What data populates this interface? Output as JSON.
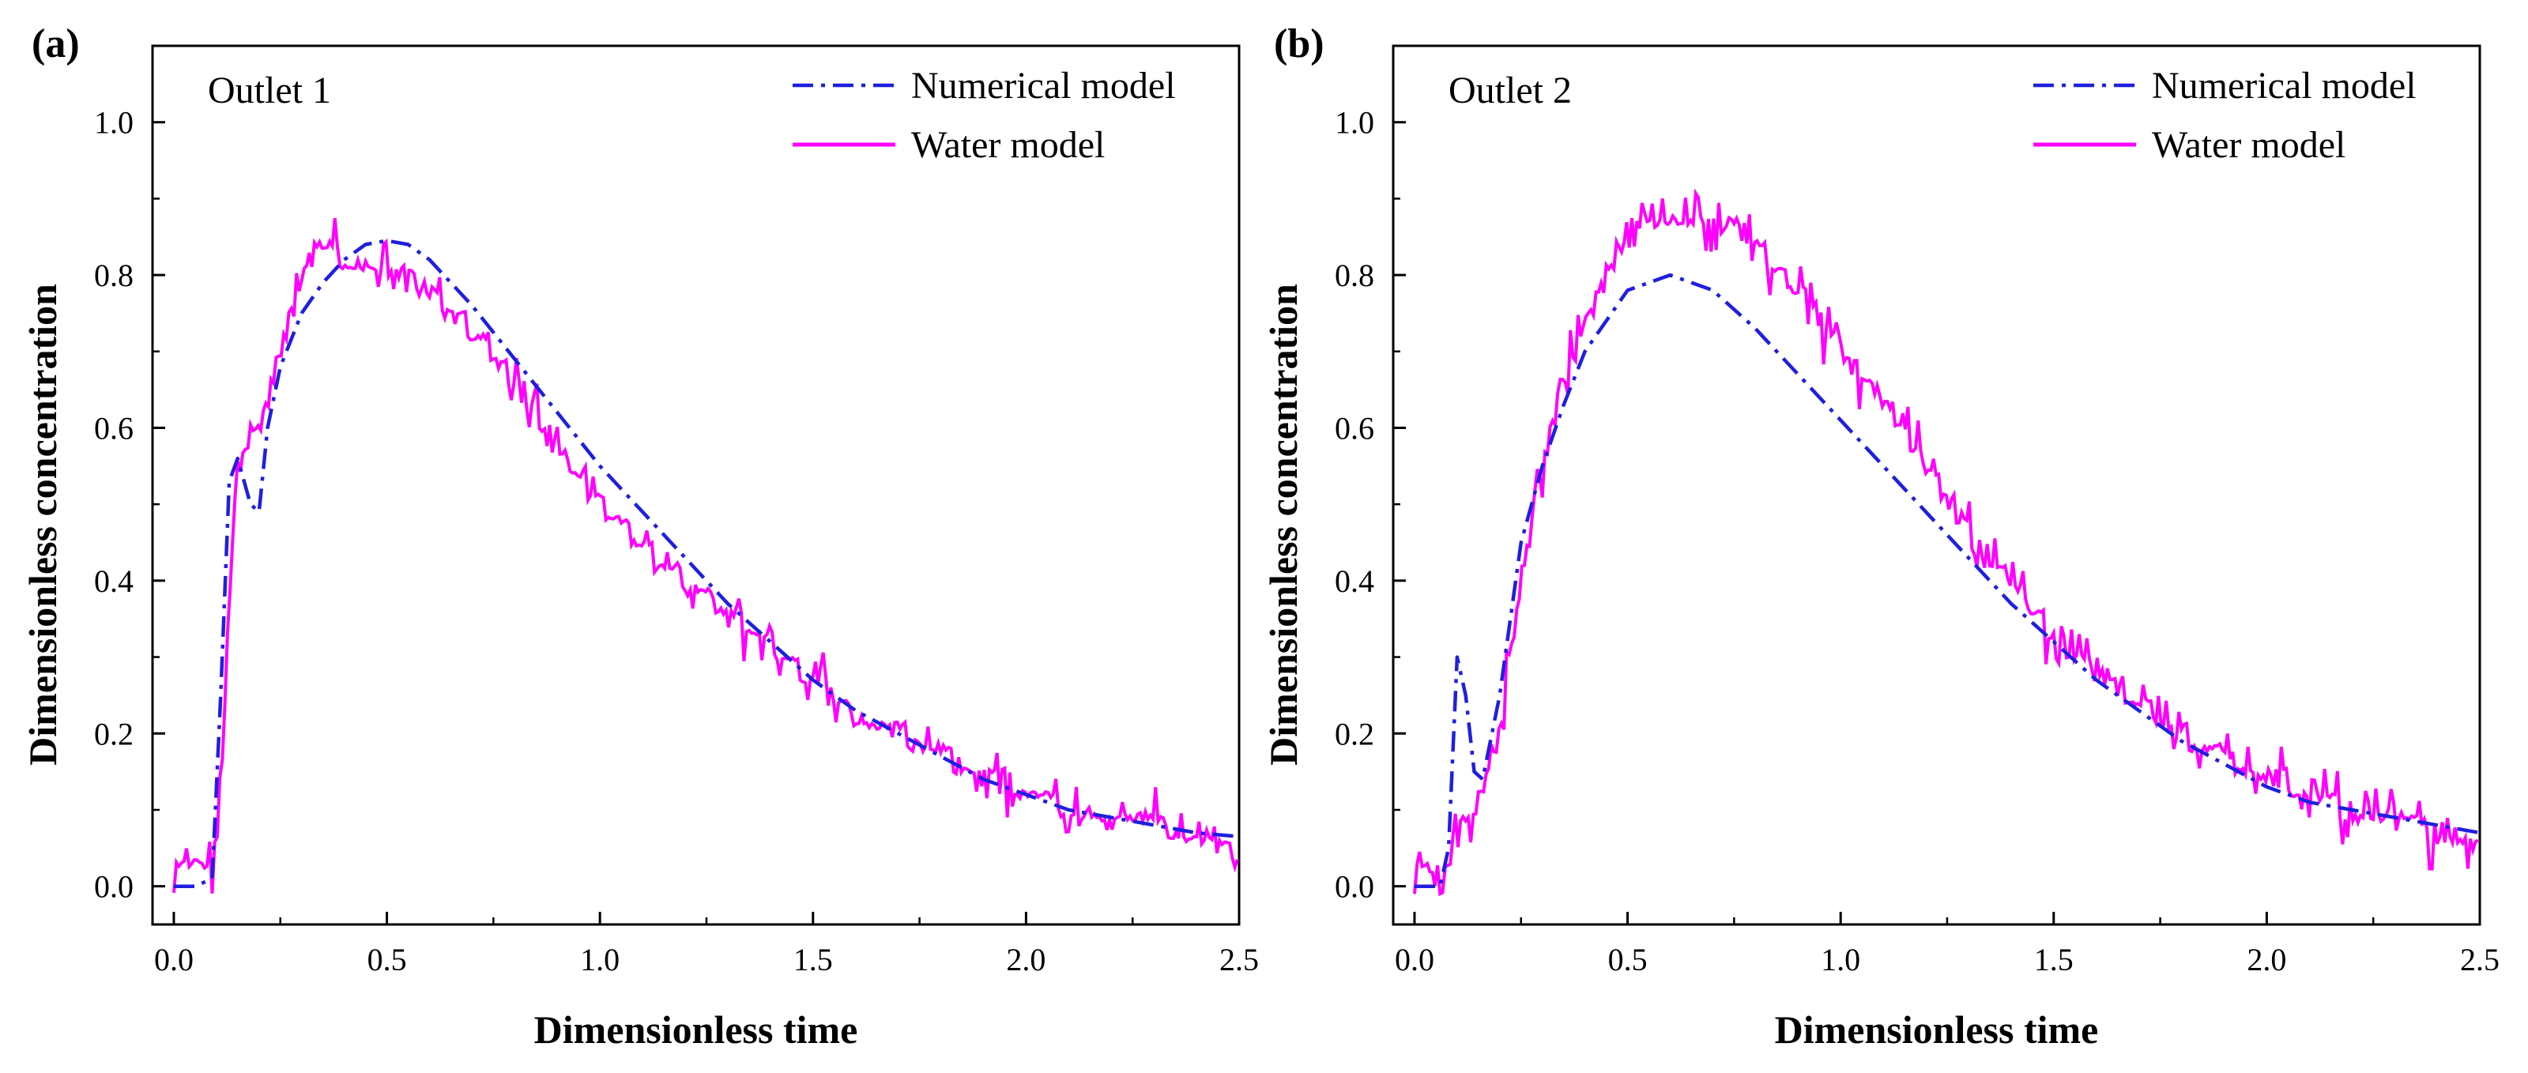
{
  "chart_data": [
    {
      "type": "line",
      "panel_label": "(a)",
      "annotation": "Outlet 1",
      "xlabel": "Dimensionless time",
      "ylabel": "Dimensionless concentration",
      "xlim": [
        -0.05,
        2.5
      ],
      "ylim": [
        -0.05,
        1.1
      ],
      "xticks": [
        0.0,
        0.5,
        1.0,
        1.5,
        2.0,
        2.5
      ],
      "xtick_labels": [
        "0.0",
        "0.5",
        "1.0",
        "1.5",
        "2.0",
        "2.5"
      ],
      "yticks": [
        0.0,
        0.2,
        0.4,
        0.6,
        0.8,
        1.0
      ],
      "ytick_labels": [
        "0.0",
        "0.2",
        "0.4",
        "0.6",
        "0.8",
        "1.0"
      ],
      "legend_position": "top-right",
      "grid": false,
      "series": [
        {
          "name": "Numerical model",
          "style": "dashdot",
          "color": "#1f1fe0",
          "x": [
            0.0,
            0.05,
            0.09,
            0.11,
            0.13,
            0.15,
            0.18,
            0.2,
            0.22,
            0.25,
            0.3,
            0.35,
            0.4,
            0.45,
            0.5,
            0.55,
            0.6,
            0.7,
            0.8,
            0.9,
            1.0,
            1.1,
            1.2,
            1.3,
            1.4,
            1.5,
            1.6,
            1.7,
            1.8,
            1.9,
            2.0,
            2.1,
            2.2,
            2.3,
            2.4,
            2.5
          ],
          "y": [
            0.0,
            0.0,
            0.01,
            0.25,
            0.53,
            0.56,
            0.5,
            0.49,
            0.6,
            0.68,
            0.75,
            0.79,
            0.82,
            0.84,
            0.845,
            0.84,
            0.82,
            0.76,
            0.69,
            0.62,
            0.55,
            0.49,
            0.43,
            0.37,
            0.32,
            0.27,
            0.23,
            0.2,
            0.17,
            0.14,
            0.12,
            0.1,
            0.09,
            0.08,
            0.07,
            0.065
          ]
        },
        {
          "name": "Water model",
          "style": "solid",
          "color": "#ff00ff",
          "x": [
            0.0,
            0.05,
            0.1,
            0.12,
            0.14,
            0.16,
            0.2,
            0.25,
            0.3,
            0.35,
            0.4,
            0.45,
            0.5,
            0.55,
            0.6,
            0.7,
            0.8,
            0.9,
            1.0,
            1.1,
            1.2,
            1.3,
            1.4,
            1.5,
            1.6,
            1.7,
            1.8,
            1.9,
            2.0,
            2.1,
            2.2,
            2.3,
            2.4,
            2.5
          ],
          "y": [
            0.02,
            0.02,
            0.05,
            0.25,
            0.48,
            0.57,
            0.6,
            0.7,
            0.8,
            0.84,
            0.82,
            0.81,
            0.8,
            0.8,
            0.78,
            0.73,
            0.67,
            0.57,
            0.5,
            0.45,
            0.4,
            0.36,
            0.32,
            0.27,
            0.22,
            0.2,
            0.17,
            0.15,
            0.12,
            0.1,
            0.09,
            0.08,
            0.06,
            0.055
          ],
          "jitter": 0.025
        }
      ]
    },
    {
      "type": "line",
      "panel_label": "(b)",
      "annotation": "Outlet 2",
      "xlabel": "Dimensionless time",
      "ylabel": "Dimensionless concentration",
      "xlim": [
        -0.05,
        2.5
      ],
      "ylim": [
        -0.05,
        1.1
      ],
      "xticks": [
        0.0,
        0.5,
        1.0,
        1.5,
        2.0,
        2.5
      ],
      "xtick_labels": [
        "0.0",
        "0.5",
        "1.0",
        "1.5",
        "2.0",
        "2.5"
      ],
      "yticks": [
        0.0,
        0.2,
        0.4,
        0.6,
        0.8,
        1.0
      ],
      "ytick_labels": [
        "0.0",
        "0.2",
        "0.4",
        "0.6",
        "0.8",
        "1.0"
      ],
      "legend_position": "top-right",
      "grid": false,
      "series": [
        {
          "name": "Numerical model",
          "style": "dashdot",
          "color": "#1f1fe0",
          "x": [
            0.0,
            0.06,
            0.08,
            0.1,
            0.12,
            0.14,
            0.16,
            0.2,
            0.25,
            0.3,
            0.35,
            0.4,
            0.5,
            0.6,
            0.7,
            0.8,
            0.9,
            1.0,
            1.1,
            1.2,
            1.3,
            1.4,
            1.5,
            1.6,
            1.7,
            1.8,
            1.9,
            2.0,
            2.1,
            2.2,
            2.3,
            2.4,
            2.5
          ],
          "y": [
            0.0,
            0.0,
            0.05,
            0.3,
            0.25,
            0.15,
            0.14,
            0.25,
            0.45,
            0.55,
            0.63,
            0.7,
            0.78,
            0.8,
            0.78,
            0.73,
            0.67,
            0.61,
            0.55,
            0.49,
            0.43,
            0.37,
            0.32,
            0.27,
            0.23,
            0.19,
            0.16,
            0.13,
            0.11,
            0.1,
            0.09,
            0.08,
            0.07
          ]
        },
        {
          "name": "Water model",
          "style": "solid",
          "color": "#ff00ff",
          "x": [
            0.0,
            0.08,
            0.1,
            0.15,
            0.2,
            0.25,
            0.3,
            0.35,
            0.4,
            0.45,
            0.5,
            0.55,
            0.6,
            0.65,
            0.7,
            0.75,
            0.8,
            0.9,
            1.0,
            1.1,
            1.2,
            1.3,
            1.4,
            1.5,
            1.6,
            1.7,
            1.8,
            1.9,
            2.0,
            2.1,
            2.2,
            2.3,
            2.4,
            2.5
          ],
          "y": [
            0.02,
            0.02,
            0.1,
            0.1,
            0.2,
            0.4,
            0.55,
            0.65,
            0.74,
            0.8,
            0.86,
            0.87,
            0.88,
            0.88,
            0.87,
            0.87,
            0.84,
            0.78,
            0.7,
            0.64,
            0.55,
            0.47,
            0.4,
            0.33,
            0.28,
            0.24,
            0.2,
            0.17,
            0.15,
            0.12,
            0.1,
            0.09,
            0.07,
            0.055
          ],
          "jitter": 0.025
        }
      ]
    }
  ]
}
